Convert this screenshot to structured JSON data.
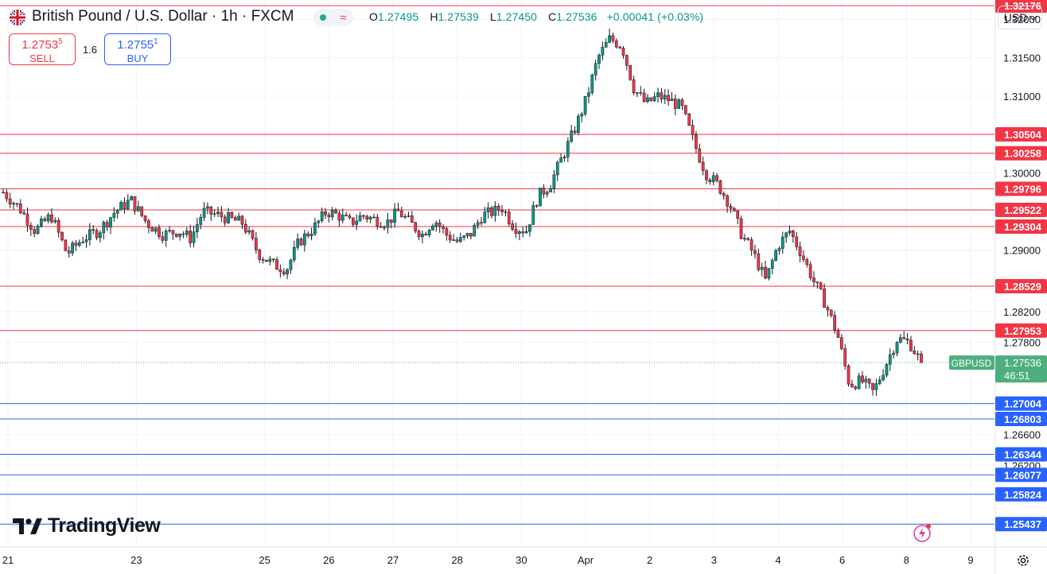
{
  "header": {
    "title": "British Pound / U.S. Dollar · 1h · FXCM",
    "ohlc": [
      {
        "key": "O",
        "value": "1.27495"
      },
      {
        "key": "H",
        "value": "1.27539"
      },
      {
        "key": "L",
        "value": "1.27450"
      },
      {
        "key": "C",
        "value": "1.27536"
      }
    ],
    "change": "+0.00041 (+0.03%)"
  },
  "trade": {
    "sell_price": "1.2753",
    "sell_price_sup": "5",
    "sell_label": "SELL",
    "spread": "1.6",
    "buy_price": "1.2755",
    "buy_price_sup": "1",
    "buy_label": "BUY"
  },
  "currency": "USD",
  "brand": "TradingView",
  "colors": {
    "up": "#089981",
    "down": "#f23645",
    "resistance": "#f23645",
    "support": "#2962ff",
    "price_tag": "#4caf7d"
  },
  "chart_data": {
    "type": "candlestick",
    "symbol_tag": "GBPUSD",
    "last_price": "1.27536",
    "countdown": "46:51",
    "y_range": [
      1.2515,
      1.3225
    ],
    "y_ticks": [
      "1.32000",
      "1.31500",
      "1.31000",
      "1.30500",
      "1.30000",
      "1.29500",
      "1.29000",
      "1.28500",
      "1.28200",
      "1.27800",
      "1.27000",
      "1.26600",
      "1.26200"
    ],
    "x_ticks": [
      {
        "label": "21",
        "pos": 0.0
      },
      {
        "label": "23",
        "pos": 2.0
      },
      {
        "label": "25",
        "pos": 4.0
      },
      {
        "label": "26",
        "pos": 5.0
      },
      {
        "label": "27",
        "pos": 6.0
      },
      {
        "label": "28",
        "pos": 7.0
      },
      {
        "label": "30",
        "pos": 8.0
      },
      {
        "label": "Apr",
        "pos": 9.0
      },
      {
        "label": "2",
        "pos": 10.0
      },
      {
        "label": "3",
        "pos": 11.0
      },
      {
        "label": "4",
        "pos": 12.0
      },
      {
        "label": "6",
        "pos": 13.0
      },
      {
        "label": "8",
        "pos": 14.0
      },
      {
        "label": "9",
        "pos": 15.0
      }
    ],
    "resistance_levels": [
      "1.32176",
      "1.30504",
      "1.30258",
      "1.29796",
      "1.29522",
      "1.29304",
      "1.28529",
      "1.27953"
    ],
    "support_levels": [
      "1.27004",
      "1.26803",
      "1.26344",
      "1.26077",
      "1.25824",
      "1.25437"
    ],
    "price_path": [
      [
        0.0,
        1.2975
      ],
      [
        0.4,
        1.2955
      ],
      [
        0.8,
        1.2925
      ],
      [
        1.2,
        1.2945
      ],
      [
        1.6,
        1.2895
      ],
      [
        2.0,
        1.2915
      ],
      [
        2.4,
        1.2925
      ],
      [
        2.8,
        1.295
      ],
      [
        3.2,
        1.2965
      ],
      [
        3.6,
        1.2935
      ],
      [
        4.0,
        1.292
      ],
      [
        4.4,
        1.2925
      ],
      [
        4.7,
        1.2915
      ],
      [
        5.0,
        1.295
      ],
      [
        5.4,
        1.2945
      ],
      [
        5.7,
        1.294
      ],
      [
        6.0,
        1.2935
      ],
      [
        6.4,
        1.2895
      ],
      [
        6.8,
        1.288
      ],
      [
        7.1,
        1.2875
      ],
      [
        7.4,
        1.291
      ],
      [
        7.8,
        1.293
      ],
      [
        8.1,
        1.295
      ],
      [
        8.4,
        1.2945
      ],
      [
        8.7,
        1.2935
      ],
      [
        9.0,
        1.2945
      ],
      [
        9.3,
        1.294
      ],
      [
        9.6,
        1.2935
      ],
      [
        9.9,
        1.295
      ],
      [
        10.2,
        1.2935
      ],
      [
        10.5,
        1.292
      ],
      [
        10.8,
        1.294
      ],
      [
        11.1,
        1.292
      ],
      [
        11.4,
        1.291
      ],
      [
        11.7,
        1.292
      ],
      [
        12.0,
        1.2945
      ],
      [
        12.3,
        1.295
      ],
      [
        12.5,
        1.2955
      ],
      [
        12.8,
        1.293
      ],
      [
        13.1,
        1.2925
      ],
      [
        13.4,
        1.297
      ],
      [
        13.7,
        1.2985
      ],
      [
        14.0,
        1.302
      ],
      [
        14.3,
        1.3055
      ],
      [
        14.6,
        1.3095
      ],
      [
        14.9,
        1.315
      ],
      [
        15.2,
        1.3175
      ],
      [
        15.5,
        1.3165
      ],
      [
        15.8,
        1.311
      ],
      [
        16.1,
        1.309
      ],
      [
        16.4,
        1.31
      ],
      [
        16.7,
        1.3095
      ],
      [
        17.0,
        1.3085
      ],
      [
        17.3,
        1.304
      ],
      [
        17.6,
        1.3
      ],
      [
        17.9,
        1.2985
      ],
      [
        18.2,
        1.296
      ],
      [
        18.5,
        1.292
      ],
      [
        18.8,
        1.2895
      ],
      [
        19.1,
        1.286
      ],
      [
        19.4,
        1.2905
      ],
      [
        19.7,
        1.2925
      ],
      [
        20.0,
        1.2895
      ],
      [
        20.3,
        1.286
      ],
      [
        20.6,
        1.283
      ],
      [
        20.9,
        1.279
      ],
      [
        21.2,
        1.2725
      ],
      [
        21.5,
        1.273
      ],
      [
        21.8,
        1.2715
      ],
      [
        22.1,
        1.275
      ],
      [
        22.4,
        1.2785
      ],
      [
        22.7,
        1.278
      ],
      [
        23.0,
        1.27536
      ]
    ]
  }
}
